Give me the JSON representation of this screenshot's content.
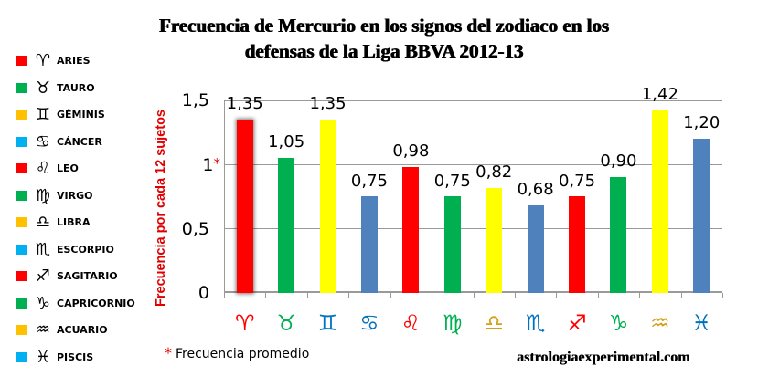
{
  "title": {
    "line1": "Frecuencia de Mercurio en los signos del zodiaco en los",
    "line2": "defensas de la Liga BBVA 2012-13"
  },
  "legend": [
    {
      "name": "ARIES",
      "glyph": "♈",
      "color": "#ff0000"
    },
    {
      "name": "TAURO",
      "glyph": "♉",
      "color": "#00b050"
    },
    {
      "name": "GÉMINIS",
      "glyph": "♊",
      "color": "#ffc000"
    },
    {
      "name": "CÁNCER",
      "glyph": "♋",
      "color": "#00b0f0"
    },
    {
      "name": "LEO",
      "glyph": "♌",
      "color": "#ff0000"
    },
    {
      "name": "VIRGO",
      "glyph": "♍",
      "color": "#00b050"
    },
    {
      "name": "LIBRA",
      "glyph": "♎",
      "color": "#ffc000"
    },
    {
      "name": "ESCORPIO",
      "glyph": "♏",
      "color": "#00b0f0"
    },
    {
      "name": "SAGITARIO",
      "glyph": "♐",
      "color": "#ff0000"
    },
    {
      "name": "CAPRICORNIO",
      "glyph": "♑",
      "color": "#00b050"
    },
    {
      "name": "ACUARIO",
      "glyph": "♒",
      "color": "#ffc000"
    },
    {
      "name": "PISCIS",
      "glyph": "♓",
      "color": "#00b0f0"
    }
  ],
  "y_axis": {
    "label": "Frecuencia por cada 12 sujetos",
    "ticks": [
      "0",
      "0,5",
      "1",
      "1,5"
    ],
    "average_marker": "*"
  },
  "x_symbols": [
    {
      "glyph": "♈",
      "color": "#ff0000"
    },
    {
      "glyph": "♉",
      "color": "#00b050"
    },
    {
      "glyph": "♊",
      "color": "#0070c0"
    },
    {
      "glyph": "♋",
      "color": "#0070c0"
    },
    {
      "glyph": "♌",
      "color": "#ff0000"
    },
    {
      "glyph": "♍",
      "color": "#00b050"
    },
    {
      "glyph": "♎",
      "color": "#d4a017"
    },
    {
      "glyph": "♏",
      "color": "#0070c0"
    },
    {
      "glyph": "♐",
      "color": "#ff0000"
    },
    {
      "glyph": "♑",
      "color": "#00b050"
    },
    {
      "glyph": "♒",
      "color": "#d4a017"
    },
    {
      "glyph": "♓",
      "color": "#0070c0"
    }
  ],
  "bar_labels": [
    "1,35",
    "1,05",
    "1,35",
    "0,75",
    "0,98",
    "0,75",
    "0,82",
    "0,68",
    "0,75",
    "0,90",
    "1,42",
    "1,20"
  ],
  "footnote": {
    "marker": "*",
    "text": "Frecuencia promedio"
  },
  "site": "astrologiaexperimental.com",
  "chart_data": {
    "type": "bar",
    "title": "Frecuencia de Mercurio en los signos del zodiaco en los defensas de la Liga BBVA 2012-13",
    "xlabel": "",
    "ylabel": "Frecuencia por cada 12 sujetos",
    "categories": [
      "Aries",
      "Tauro",
      "Géminis",
      "Cáncer",
      "Leo",
      "Virgo",
      "Libra",
      "Escorpio",
      "Sagitario",
      "Capricornio",
      "Acuario",
      "Piscis"
    ],
    "values": [
      1.35,
      1.05,
      1.35,
      0.75,
      0.98,
      0.75,
      0.82,
      0.68,
      0.75,
      0.9,
      1.42,
      1.2
    ],
    "bar_colors": [
      "#ff0000",
      "#00b050",
      "#ffff00",
      "#4f81bd",
      "#ff0000",
      "#00b050",
      "#ffff00",
      "#4f81bd",
      "#ff0000",
      "#00b050",
      "#ffff00",
      "#4f81bd"
    ],
    "ylim": [
      0,
      1.5
    ],
    "yticks": [
      0,
      0.5,
      1,
      1.5
    ],
    "grid": "horizontal",
    "annotations": [
      "* Frecuencia promedio (y = 1)"
    ],
    "legend_position": "left"
  }
}
